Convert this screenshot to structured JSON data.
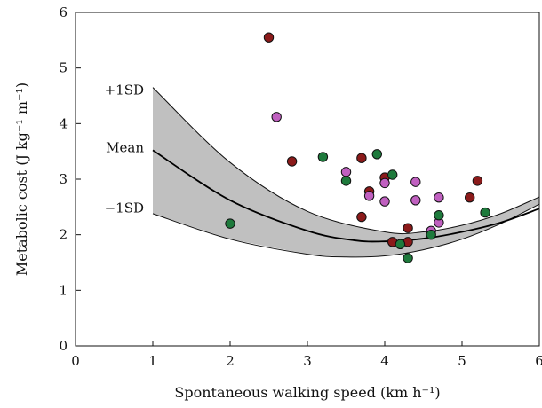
{
  "chart_data": {
    "type": "scatter",
    "xlabel": "Spontaneous walking speed (km h⁻¹)",
    "ylabel": "Metabolic cost (J kg⁻¹ m⁻¹)",
    "xlim": [
      0,
      6
    ],
    "ylim": [
      0,
      6
    ],
    "x_ticks": [
      "0",
      "1",
      "2",
      "3",
      "4",
      "5",
      "6"
    ],
    "y_ticks": [
      "0",
      "1",
      "2",
      "3",
      "4",
      "5",
      "6"
    ],
    "grid": false,
    "band": {
      "upper_label": "+1SD",
      "mean_label": "Mean",
      "lower_label": "−1SD",
      "x_start": 1,
      "x_end": 6,
      "fill_color": "#c0c0c0",
      "mean": {
        "x": [
          1,
          2,
          3,
          3.6,
          4,
          4.5,
          5,
          5.5,
          6
        ],
        "y": [
          3.52,
          2.62,
          2.07,
          1.9,
          1.88,
          1.93,
          2.05,
          2.22,
          2.47
        ]
      },
      "upper": {
        "x": [
          1,
          2,
          3,
          4,
          4.5,
          5,
          5.5,
          6
        ],
        "y": [
          4.65,
          3.3,
          2.42,
          2.05,
          2.05,
          2.17,
          2.38,
          2.68
        ]
      },
      "lower": {
        "x": [
          1,
          2,
          3,
          3.5,
          4,
          4.5,
          5,
          5.5,
          6
        ],
        "y": [
          2.38,
          1.92,
          1.65,
          1.6,
          1.62,
          1.73,
          1.92,
          2.2,
          2.55
        ]
      }
    },
    "series": [
      {
        "color": "#8b1a1a",
        "points": [
          [
            2.5,
            5.55
          ],
          [
            2.8,
            3.32
          ],
          [
            3.7,
            3.38
          ],
          [
            3.8,
            2.78
          ],
          [
            3.7,
            2.32
          ],
          [
            4.0,
            3.03
          ],
          [
            4.3,
            2.12
          ],
          [
            4.1,
            1.87
          ],
          [
            4.3,
            1.87
          ],
          [
            5.1,
            2.67
          ],
          [
            5.2,
            2.97
          ]
        ]
      },
      {
        "color": "#c060c0",
        "points": [
          [
            2.6,
            4.12
          ],
          [
            3.5,
            3.13
          ],
          [
            3.8,
            2.7
          ],
          [
            4.0,
            2.93
          ],
          [
            4.0,
            2.6
          ],
          [
            4.4,
            2.95
          ],
          [
            4.4,
            2.62
          ],
          [
            4.6,
            2.07
          ],
          [
            4.7,
            2.67
          ],
          [
            4.7,
            2.22
          ]
        ]
      },
      {
        "color": "#1e7a3c",
        "points": [
          [
            2.0,
            2.2
          ],
          [
            3.2,
            3.4
          ],
          [
            3.5,
            2.97
          ],
          [
            3.9,
            3.45
          ],
          [
            4.1,
            3.08
          ],
          [
            4.2,
            1.83
          ],
          [
            4.3,
            1.58
          ],
          [
            4.6,
            2.0
          ],
          [
            4.7,
            2.35
          ],
          [
            5.3,
            2.4
          ]
        ]
      }
    ]
  }
}
